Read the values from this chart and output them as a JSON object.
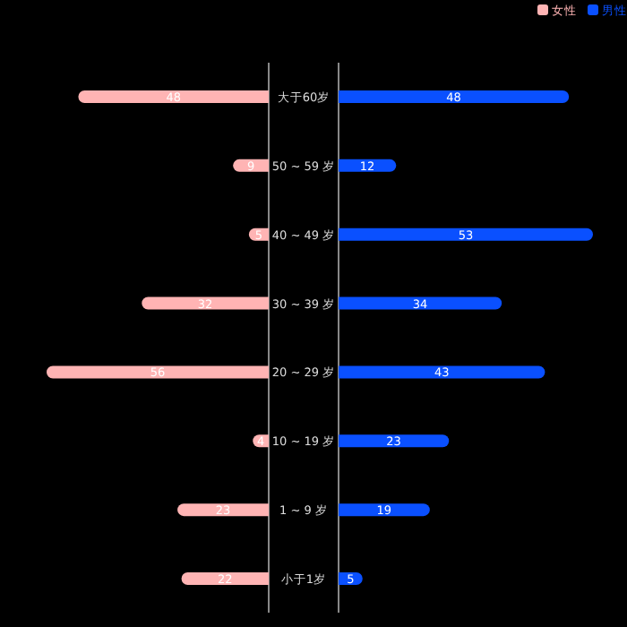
{
  "chart_data": [
    {
      "type": "bar",
      "orientation": "horizontal",
      "categories": [
        "大于60岁",
        "50 ~ 59 岁",
        "40 ~ 49 岁",
        "30 ~ 39 岁",
        "20 ~ 29 岁",
        "10 ~ 19 岁",
        "1 ~ 9 岁",
        "小于1岁"
      ],
      "tick_labels": false,
      "series": [
        {
          "name": "女性",
          "color": "#ffb4b4",
          "values": [
            48,
            9,
            5,
            32,
            56,
            4,
            23,
            22
          ]
        }
      ],
      "data_labels": true,
      "legend": "top right"
    },
    {
      "type": "bar",
      "orientation": "horizontal",
      "categories": [
        "大于60岁",
        "50 ~ 59 岁",
        "40 ~ 49 岁",
        "30 ~ 39 岁",
        "20 ~ 29 岁",
        "10 ~ 19 岁",
        "1 ~ 9 岁",
        "小于1岁"
      ],
      "series": [
        {
          "name": "男性",
          "color": "#0a50ff",
          "values": [
            48,
            12,
            53,
            34,
            43,
            23,
            19,
            5
          ]
        }
      ],
      "data_labels": true,
      "legend": "top right"
    }
  ]
}
